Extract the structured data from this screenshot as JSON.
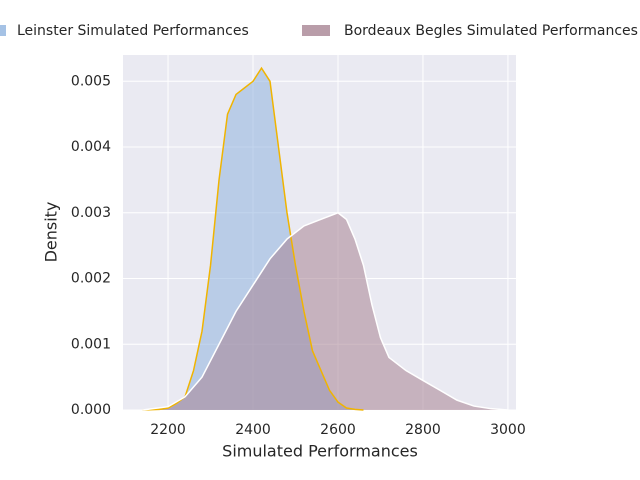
{
  "chart_data": {
    "type": "density",
    "x_label": "Simulated Performances",
    "y_label": "Density",
    "xlim": [
      2094,
      3019
    ],
    "ylim": [
      0,
      0.0054
    ],
    "xticks": [
      2200,
      2400,
      2600,
      2800,
      3000
    ],
    "yticks": [
      {
        "value": 0,
        "label": "0.000"
      },
      0.001,
      0.002,
      0.003,
      0.004,
      0.005
    ],
    "grid": true,
    "legend": "top",
    "series": [
      {
        "name": "Leinster Simulated Performances",
        "color": "#8fb3de",
        "line_color": "#f0b400",
        "x": [
          2140,
          2180,
          2200,
          2220,
          2240,
          2260,
          2280,
          2300,
          2320,
          2340,
          2360,
          2380,
          2400,
          2420,
          2440,
          2460,
          2480,
          2500,
          2520,
          2540,
          2560,
          2580,
          2600,
          2620,
          2640,
          2660
        ],
        "values": [
          0,
          1e-05,
          3e-05,
          0.0001,
          0.0002,
          0.0006,
          0.0012,
          0.0022,
          0.0035,
          0.0045,
          0.0048,
          0.0049,
          0.005,
          0.0052,
          0.005,
          0.004,
          0.003,
          0.0022,
          0.0015,
          0.0009,
          0.0006,
          0.0003,
          0.00012,
          3e-05,
          1e-05,
          0
        ]
      },
      {
        "name": "Bordeaux Begles Simulated Performances",
        "color": "#a88494",
        "line_color": "#ffffff",
        "x": [
          2140,
          2200,
          2240,
          2280,
          2320,
          2360,
          2400,
          2440,
          2480,
          2520,
          2560,
          2600,
          2620,
          2640,
          2660,
          2680,
          2700,
          2720,
          2760,
          2800,
          2840,
          2880,
          2920,
          2960,
          3000
        ],
        "values": [
          0,
          5e-05,
          0.0002,
          0.0005,
          0.001,
          0.0015,
          0.0019,
          0.0023,
          0.0026,
          0.0028,
          0.0029,
          0.003,
          0.0029,
          0.0026,
          0.0022,
          0.0016,
          0.0011,
          0.0008,
          0.0006,
          0.00045,
          0.0003,
          0.00015,
          6e-05,
          2e-05,
          0
        ]
      }
    ]
  }
}
